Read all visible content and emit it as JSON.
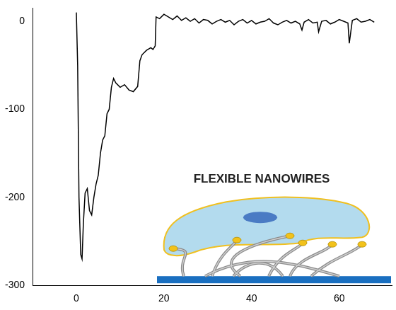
{
  "chart_data": {
    "type": "line",
    "x": [
      0,
      0.3,
      0.6,
      1,
      1.3,
      1.6,
      2,
      2.5,
      3,
      3.5,
      4,
      4.5,
      5,
      5.5,
      6,
      6.5,
      7,
      7.5,
      8,
      8.5,
      9,
      10,
      11,
      12,
      13,
      14,
      14.5,
      15,
      16,
      17,
      17.5,
      18,
      18.2,
      19,
      20,
      21,
      22,
      23,
      24,
      25,
      26,
      27,
      28,
      29,
      30,
      31,
      32,
      33,
      34,
      35,
      36,
      37,
      38,
      39,
      40,
      41,
      42,
      43,
      44,
      45,
      46,
      47,
      48,
      49,
      50,
      51,
      51.5,
      52,
      53,
      54,
      55,
      55.3,
      56,
      57,
      58,
      59,
      60,
      61,
      62,
      62.3,
      63,
      64,
      65,
      66,
      67,
      68
    ],
    "values": [
      10,
      -50,
      -200,
      -265,
      -270,
      -230,
      -195,
      -190,
      -215,
      -220,
      -200,
      -185,
      -175,
      -150,
      -135,
      -130,
      -105,
      -100,
      -75,
      -65,
      -70,
      -75,
      -72,
      -78,
      -80,
      -74,
      -45,
      -38,
      -33,
      -30,
      -32,
      -28,
      5,
      3,
      8,
      5,
      2,
      6,
      1,
      4,
      0,
      3,
      -2,
      2,
      1,
      -3,
      0,
      2,
      -1,
      1,
      -4,
      0,
      2,
      -2,
      1,
      -3,
      -1,
      0,
      3,
      -2,
      -4,
      -1,
      1,
      -2,
      0,
      -3,
      -10,
      -1,
      2,
      -2,
      -1,
      -12,
      0,
      1,
      -3,
      -1,
      2,
      0,
      -2,
      -25,
      1,
      3,
      -1,
      0,
      2,
      -1
    ],
    "color": "#000000",
    "xlim": [
      -10,
      72
    ],
    "xticks": [
      0,
      20,
      40,
      60
    ],
    "ylim": [
      -300,
      15
    ],
    "yticks": [
      -300,
      -200,
      -100,
      0
    ],
    "grid": false,
    "annotations": [
      "FLEXIBLE NANOWIRES"
    ]
  }
}
